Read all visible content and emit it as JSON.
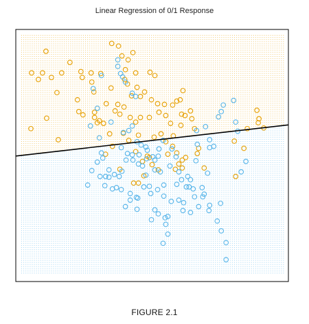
{
  "caption": "FIGURE 2.1",
  "colors": {
    "class_orange": "#E69F00",
    "class_blue": "#56B4E9",
    "boundary": "#000000",
    "frame": "#000000"
  },
  "chart_data": {
    "type": "scatter",
    "title": "Linear Regression of 0/1 Response",
    "xlabel": "",
    "ylabel": "",
    "xlim": [
      0,
      385
    ],
    "ylim": [
      0,
      370
    ],
    "grid": false,
    "legend": "none",
    "background": "dotted decision-region grid: orange above boundary, blue below",
    "decision_boundary": {
      "type": "line",
      "from": [
        0,
        185
      ],
      "to": [
        385,
        231
      ]
    },
    "series": [
      {
        "class": "orange",
        "points": [
          [
            16,
            311
          ],
          [
            26,
            301
          ],
          [
            32,
            311
          ],
          [
            37,
            344
          ],
          [
            45,
            304
          ],
          [
            53,
            281
          ],
          [
            60,
            311
          ],
          [
            72,
            327
          ],
          [
            83,
            270
          ],
          [
            38,
            242
          ],
          [
            88,
            313
          ],
          [
            103,
            311
          ],
          [
            90,
            304
          ],
          [
            104,
            297
          ],
          [
            107,
            282
          ],
          [
            115,
            238
          ],
          [
            108,
            251
          ],
          [
            117,
            310
          ],
          [
            133,
            356
          ],
          [
            143,
            352
          ],
          [
            148,
            337
          ],
          [
            157,
            331
          ],
          [
            164,
            342
          ],
          [
            153,
            316
          ],
          [
            152,
            301
          ],
          [
            156,
            294
          ],
          [
            168,
            311
          ],
          [
            189,
            312
          ],
          [
            196,
            307
          ],
          [
            170,
            289
          ],
          [
            175,
            275
          ],
          [
            132,
            288
          ],
          [
            142,
            263
          ],
          [
            151,
            259
          ],
          [
            162,
            276
          ],
          [
            181,
            282
          ],
          [
            191,
            270
          ],
          [
            200,
            264
          ],
          [
            210,
            263
          ],
          [
            222,
            262
          ],
          [
            228,
            268
          ],
          [
            237,
            284
          ],
          [
            233,
            270
          ],
          [
            235,
            248
          ],
          [
            248,
            253
          ],
          [
            125,
            264
          ],
          [
            85,
            252
          ],
          [
            91,
            247
          ],
          [
            108,
            243
          ],
          [
            112,
            235
          ],
          [
            121,
            234
          ],
          [
            138,
            253
          ],
          [
            145,
            248
          ],
          [
            160,
            243
          ],
          [
            168,
            236
          ],
          [
            175,
            243
          ],
          [
            188,
            243
          ],
          [
            202,
            251
          ],
          [
            212,
            246
          ],
          [
            219,
            234
          ],
          [
            234,
            231
          ],
          [
            250,
            241
          ],
          [
            254,
            226
          ],
          [
            172,
            216
          ],
          [
            195,
            213
          ],
          [
            205,
            218
          ],
          [
            212,
            206
          ],
          [
            222,
            199
          ],
          [
            228,
            189
          ],
          [
            231,
            172
          ],
          [
            236,
            178
          ],
          [
            241,
            182
          ],
          [
            226,
            164
          ],
          [
            258,
            188
          ],
          [
            260,
            196
          ],
          [
            130,
            218
          ],
          [
            150,
            219
          ],
          [
            158,
            208
          ],
          [
            180,
            154
          ],
          [
            185,
            184
          ],
          [
            192,
            171
          ],
          [
            201,
            163
          ],
          [
            215,
            187
          ],
          [
            240,
            246
          ],
          [
            268,
            166
          ],
          [
            314,
            153
          ],
          [
            326,
            196
          ],
          [
            331,
            226
          ],
          [
            347,
            235
          ],
          [
            345,
            254
          ],
          [
            348,
            241
          ],
          [
            355,
            227
          ],
          [
            15,
            226
          ],
          [
            55,
            209
          ],
          [
            168,
            191
          ],
          [
            178,
            176
          ],
          [
            124,
            187
          ],
          [
            165,
            143
          ],
          [
            172,
            143
          ],
          [
            236,
            166
          ],
          [
            312,
            207
          ],
          [
            223,
            215
          ],
          [
            134,
            199
          ],
          [
            188,
            182
          ],
          [
            145,
            164
          ]
        ]
      },
      {
        "class": "blue",
        "points": [
          [
            142,
            331
          ],
          [
            142,
            321
          ],
          [
            146,
            310
          ],
          [
            153,
            297
          ],
          [
            163,
            280
          ],
          [
            168,
            275
          ],
          [
            149,
            305
          ],
          [
            118,
            307
          ],
          [
            106,
            287
          ],
          [
            112,
            257
          ],
          [
            132,
            236
          ],
          [
            150,
            220
          ],
          [
            158,
            223
          ],
          [
            163,
            230
          ],
          [
            170,
            206
          ],
          [
            176,
            201
          ],
          [
            185,
            193
          ],
          [
            193,
            183
          ],
          [
            202,
            195
          ],
          [
            208,
            208
          ],
          [
            221,
            195
          ],
          [
            218,
            169
          ],
          [
            227,
            183
          ],
          [
            231,
            160
          ],
          [
            235,
            148
          ],
          [
            244,
            153
          ],
          [
            248,
            148
          ],
          [
            265,
            136
          ],
          [
            268,
            126
          ],
          [
            273,
            158
          ],
          [
            238,
            113
          ],
          [
            220,
            115
          ],
          [
            215,
            92
          ],
          [
            201,
            96
          ],
          [
            212,
            80
          ],
          [
            208,
            51
          ],
          [
            191,
            87
          ],
          [
            169,
            121
          ],
          [
            160,
            127
          ],
          [
            148,
            161
          ],
          [
            137,
            156
          ],
          [
            116,
            153
          ],
          [
            123,
            139
          ],
          [
            129,
            152
          ],
          [
            147,
            197
          ],
          [
            156,
            188
          ],
          [
            163,
            186
          ],
          [
            172,
            172
          ],
          [
            178,
            169
          ],
          [
            184,
            180
          ],
          [
            196,
            163
          ],
          [
            204,
            160
          ],
          [
            190,
            127
          ],
          [
            170,
            103
          ],
          [
            153,
            107
          ],
          [
            147,
            133
          ],
          [
            144,
            153
          ],
          [
            180,
            137
          ],
          [
            200,
            133
          ],
          [
            183,
            155
          ],
          [
            196,
            178
          ],
          [
            256,
            177
          ],
          [
            276,
            197
          ],
          [
            276,
            209
          ],
          [
            257,
            223
          ],
          [
            270,
            229
          ],
          [
            289,
            244
          ],
          [
            293,
            252
          ],
          [
            311,
            269
          ],
          [
            296,
            262
          ],
          [
            314,
            236
          ],
          [
            317,
            222
          ],
          [
            329,
            176
          ],
          [
            322,
            160
          ],
          [
            282,
            199
          ],
          [
            258,
            202
          ],
          [
            231,
            117
          ],
          [
            237,
            101
          ],
          [
            248,
            98
          ],
          [
            260,
            107
          ],
          [
            266,
            122
          ],
          [
            275,
            101
          ],
          [
            287,
            85
          ],
          [
            293,
            70
          ],
          [
            300,
            52
          ],
          [
            292,
            112
          ],
          [
            276,
            109
          ],
          [
            252,
            134
          ],
          [
            254,
            122
          ],
          [
            242,
            137
          ],
          [
            228,
            141
          ],
          [
            120,
            181
          ],
          [
            112,
            175
          ],
          [
            98,
            140
          ],
          [
            104,
            162
          ],
          [
            124,
            153
          ],
          [
            134,
            134
          ],
          [
            160,
            117
          ],
          [
            171,
            120
          ],
          [
            188,
            138
          ],
          [
            209,
            123
          ],
          [
            211,
            90
          ],
          [
            215,
            65
          ],
          [
            196,
            102
          ],
          [
            246,
            137
          ],
          [
            300,
            26
          ],
          [
            115,
            212
          ],
          [
            129,
            163
          ],
          [
            140,
            136
          ],
          [
            102,
            230
          ],
          [
            118,
            189
          ],
          [
            154,
            178
          ],
          [
            164,
            178
          ],
          [
            173,
            186
          ],
          [
            183,
            198
          ],
          [
            201,
            184
          ],
          [
            209,
            140
          ]
        ]
      }
    ]
  }
}
